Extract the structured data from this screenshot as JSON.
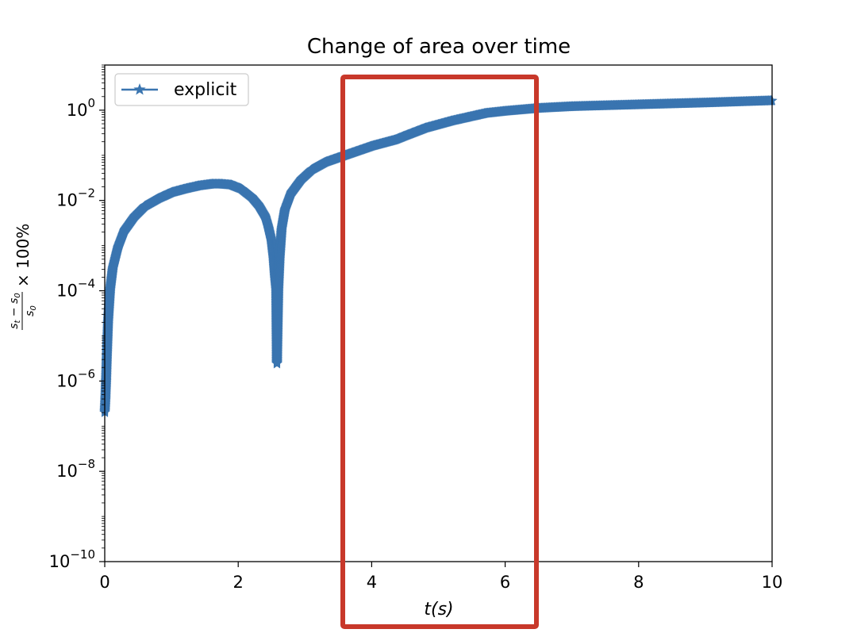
{
  "chart_data": {
    "type": "line",
    "title": "Change of area over time",
    "xlabel": "t(s)",
    "ylabel": "(s_t − s_0) / s_0 × 100%",
    "xlim": [
      0,
      10
    ],
    "ylim": [
      1e-10,
      10
    ],
    "yscale": "log",
    "xticks": [
      0,
      2,
      4,
      6,
      8,
      10
    ],
    "xtick_labels": [
      "0",
      "2",
      "4",
      "6",
      "8",
      "10"
    ],
    "yticks": [
      1e-10,
      1e-08,
      1e-06,
      0.0001,
      0.01,
      1
    ],
    "ytick_labels": [
      {
        "base": "10",
        "exp": "−10"
      },
      {
        "base": "10",
        "exp": "−8"
      },
      {
        "base": "10",
        "exp": "−6"
      },
      {
        "base": "10",
        "exp": "−4"
      },
      {
        "base": "10",
        "exp": "−2"
      },
      {
        "base": "10",
        "exp": "0"
      }
    ],
    "grid": false,
    "legend_position": "top-left",
    "series": [
      {
        "name": "explicit",
        "color": "#3a75b0",
        "marker": "star",
        "x": [
          0,
          0.01,
          0.02,
          0.03,
          0.05,
          0.08,
          0.12,
          0.2,
          0.3,
          0.45,
          0.6,
          0.8,
          1.0,
          1.2,
          1.4,
          1.6,
          1.75,
          1.9,
          2.05,
          2.2,
          2.3,
          2.4,
          2.45,
          2.5,
          2.53,
          2.55,
          2.57,
          2.58,
          2.6,
          2.62,
          2.65,
          2.7,
          2.8,
          2.95,
          3.1,
          3.3,
          3.6,
          4.0,
          4.35,
          4.5,
          4.8,
          5.2,
          5.7,
          6.0,
          6.5,
          7.0,
          8.0,
          9.0,
          10.0
        ],
        "y": [
          2e-07,
          4e-07,
          1e-06,
          3e-06,
          2e-05,
          0.0001,
          0.0003,
          0.0009,
          0.0022,
          0.0045,
          0.0075,
          0.011,
          0.015,
          0.018,
          0.021,
          0.023,
          0.023,
          0.022,
          0.018,
          0.012,
          0.008,
          0.0045,
          0.0025,
          0.0012,
          0.0005,
          0.0002,
          0.0001,
          2.4e-06,
          0.0001,
          0.0005,
          0.0022,
          0.006,
          0.015,
          0.03,
          0.048,
          0.07,
          0.1,
          0.16,
          0.22,
          0.27,
          0.4,
          0.58,
          0.85,
          0.95,
          1.1,
          1.2,
          1.32,
          1.45,
          1.62
        ]
      }
    ],
    "highlight_box": {
      "x_range": [
        3.55,
        6.45
      ],
      "color": "#c8382a"
    }
  }
}
